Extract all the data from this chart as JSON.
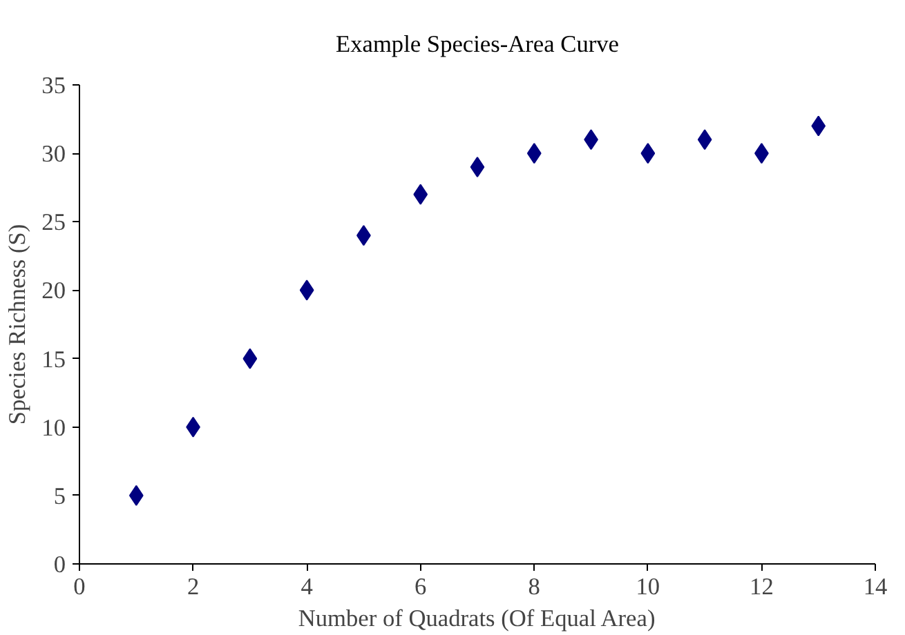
{
  "chart_data": {
    "type": "scatter",
    "title": "Example Species-Area Curve",
    "xlabel": "Number of Quadrats (Of Equal Area)",
    "ylabel": "Species Richness (S)",
    "x": [
      1,
      2,
      3,
      4,
      5,
      6,
      7,
      8,
      9,
      10,
      11,
      12,
      13
    ],
    "series": [
      {
        "color": "#000080",
        "values": [
          5,
          10,
          15,
          20,
          24,
          27,
          29,
          30,
          31,
          30,
          31,
          30,
          32
        ]
      }
    ],
    "xlim": [
      0,
      14
    ],
    "ylim": [
      0,
      35
    ],
    "xticks": [
      0,
      2,
      4,
      6,
      8,
      10,
      12,
      14
    ],
    "yticks": [
      0,
      5,
      10,
      15,
      20,
      25,
      30,
      35
    ],
    "grid": false,
    "marker": "diamond"
  }
}
